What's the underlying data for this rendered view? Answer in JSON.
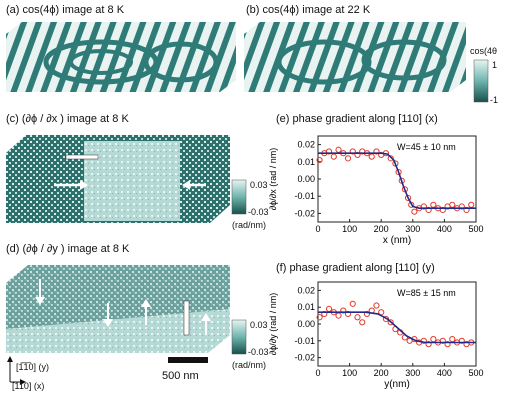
{
  "figure": {
    "panel_a_title": "(a) cos(4ϕ) image at 8 K",
    "panel_b_title": "(b) cos(4ϕ) image at 22 K",
    "panel_c_title": "(c) (∂ϕ / ∂x ) image at 8 K",
    "panel_d_title": "(d) (∂ϕ / ∂y ) image at 8 K",
    "panel_e_title": "(e) phase gradient along [110] (x)",
    "panel_f_title": "(f) phase gradient along [110] (y)",
    "cbar_cos": {
      "title": "cos(4θ",
      "max": "1",
      "min": "-1"
    },
    "cbar_grad_c": {
      "max": "0.03",
      "min": "-0.03",
      "unit": "(rad/nm)"
    },
    "cbar_grad_d": {
      "max": "0.03",
      "min": "-0.03",
      "unit": "(rad/nm)"
    },
    "axes_legend": {
      "y_dir": "[1̅̅1̅0] (y)",
      "x_dir": "[110] (x)"
    },
    "scale_bar": "500 nm",
    "colors": {
      "teal_dark": "#1f5f5a",
      "teal_mid": "#3f8a86",
      "teal_light": "#a8d3cf",
      "fit_line": "#1f2a8a",
      "data_red": "#e23a2a"
    }
  },
  "chart_data": [
    {
      "type": "scatter",
      "title": "(e) phase gradient along [110] (x)",
      "xlabel": "x (nm)",
      "ylabel": "∂ϕ/∂x (rad / nm)",
      "xlim": [
        0,
        500
      ],
      "ylim": [
        -0.025,
        0.025
      ],
      "xticks": [
        0,
        100,
        200,
        300,
        400,
        500
      ],
      "yticks": [
        0.02,
        0.01,
        0.0,
        -0.01,
        -0.02
      ],
      "annotation": "W=45 ± 10 nm",
      "series": [
        {
          "kind": "points",
          "x": [
            5,
            20,
            35,
            50,
            65,
            80,
            95,
            110,
            125,
            140,
            155,
            170,
            185,
            200,
            215,
            230,
            245,
            255,
            265,
            275,
            285,
            295,
            305,
            320,
            335,
            350,
            365,
            380,
            395,
            410,
            425,
            440,
            455,
            470,
            485
          ],
          "y": [
            0.011,
            0.015,
            0.016,
            0.013,
            0.017,
            0.015,
            0.012,
            0.016,
            0.014,
            0.016,
            0.015,
            0.013,
            0.016,
            0.014,
            0.015,
            0.012,
            0.009,
            0.004,
            -0.001,
            -0.006,
            -0.011,
            -0.015,
            -0.019,
            -0.017,
            -0.016,
            -0.018,
            -0.015,
            -0.017,
            -0.018,
            -0.016,
            -0.015,
            -0.017,
            -0.016,
            -0.018,
            -0.015
          ]
        },
        {
          "kind": "fit",
          "x": [
            0,
            200,
            220,
            240,
            255,
            270,
            285,
            300,
            320,
            500
          ],
          "y": [
            0.015,
            0.015,
            0.0145,
            0.011,
            0.004,
            -0.004,
            -0.011,
            -0.016,
            -0.017,
            -0.017
          ]
        }
      ]
    },
    {
      "type": "scatter",
      "title": "(f) phase gradient along [110] (y)",
      "xlabel": "y(nm)",
      "ylabel": "∂ϕ/∂y (rad / nm)",
      "xlim": [
        0,
        500
      ],
      "ylim": [
        -0.025,
        0.025
      ],
      "xticks": [
        0,
        100,
        200,
        300,
        400,
        500
      ],
      "yticks": [
        0.02,
        0.01,
        0.0,
        -0.01,
        -0.02
      ],
      "annotation": "W=85 ± 15 nm",
      "series": [
        {
          "kind": "points",
          "x": [
            5,
            20,
            35,
            50,
            65,
            80,
            95,
            110,
            125,
            140,
            155,
            170,
            185,
            200,
            215,
            230,
            245,
            260,
            275,
            290,
            305,
            320,
            335,
            350,
            365,
            380,
            395,
            410,
            425,
            440,
            455,
            470,
            485
          ],
          "y": [
            0.004,
            0.006,
            0.009,
            0.007,
            0.005,
            0.008,
            0.006,
            0.012,
            0.004,
            0.001,
            0.006,
            0.008,
            0.011,
            0.007,
            0.003,
            0.001,
            -0.003,
            -0.005,
            -0.008,
            -0.01,
            -0.009,
            -0.011,
            -0.01,
            -0.012,
            -0.009,
            -0.011,
            -0.01,
            -0.012,
            -0.009,
            -0.011,
            -0.01,
            -0.012,
            -0.011
          ]
        },
        {
          "kind": "fit",
          "x": [
            0,
            150,
            190,
            220,
            250,
            280,
            310,
            340,
            500
          ],
          "y": [
            0.007,
            0.007,
            0.006,
            0.003,
            -0.002,
            -0.007,
            -0.01,
            -0.011,
            -0.011
          ]
        }
      ]
    }
  ]
}
